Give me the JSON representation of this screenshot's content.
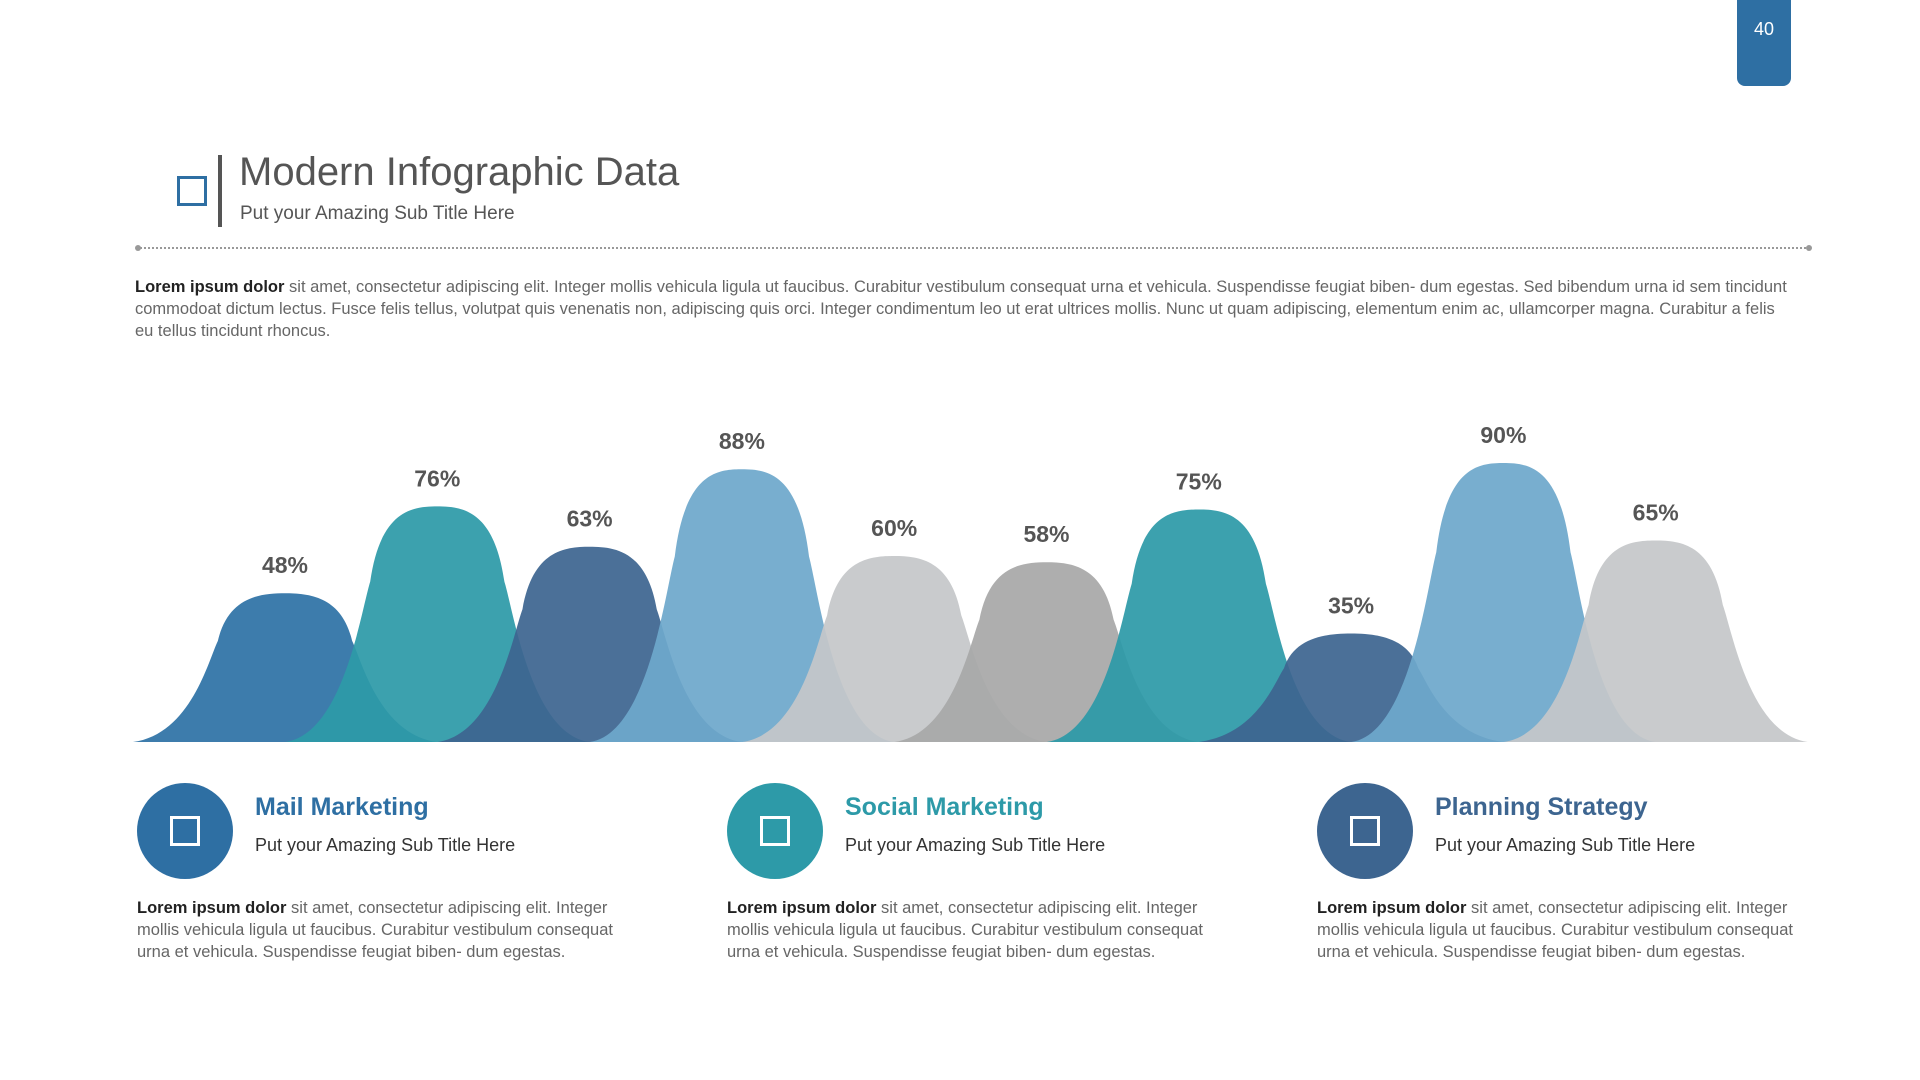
{
  "page_number": "40",
  "header": {
    "title": "Modern Infographic Data",
    "subtitle": "Put your Amazing Sub Title Here"
  },
  "intro": {
    "bold": "Lorem ipsum dolor",
    "text": " sit amet, consectetur adipiscing elit. Integer mollis vehicula ligula ut faucibus. Curabitur vestibulum consequat urna et vehicula. Suspendisse feugiat biben- dum egestas. Sed bibendum urna id sem tincidunt commodoat dictum lectus. Fusce felis tellus, volutpat quis venenatis non, adipiscing quis orci. Integer condimentum leo ut erat ultrices mollis. Nunc ut quam adipiscing, elementum enim ac, ullamcorper magna. Curabitur a felis eu tellus tincidunt rhoncus."
  },
  "chart_data": {
    "type": "area",
    "title": "",
    "xlabel": "",
    "ylabel": "",
    "ylim": [
      0,
      100
    ],
    "grid": false,
    "series": [
      {
        "name": "peak-1",
        "value": 48,
        "label": "48%",
        "color": "#2e72a6"
      },
      {
        "name": "peak-2",
        "value": 76,
        "label": "76%",
        "color": "#2d9aa8"
      },
      {
        "name": "peak-3",
        "value": 63,
        "label": "63%",
        "color": "#3d6590"
      },
      {
        "name": "peak-4",
        "value": 88,
        "label": "88%",
        "color": "#6ea8cb"
      },
      {
        "name": "peak-5",
        "value": 60,
        "label": "60%",
        "color": "#c5c7c9"
      },
      {
        "name": "peak-6",
        "value": 58,
        "label": "58%",
        "color": "#a8a8a8"
      },
      {
        "name": "peak-7",
        "value": 75,
        "label": "75%",
        "color": "#2d9aa8"
      },
      {
        "name": "peak-8",
        "value": 35,
        "label": "35%",
        "color": "#3d6590"
      },
      {
        "name": "peak-9",
        "value": 90,
        "label": "90%",
        "color": "#6ea8cb"
      },
      {
        "name": "peak-10",
        "value": 65,
        "label": "65%",
        "color": "#c5c7c9"
      }
    ]
  },
  "cards": [
    {
      "title": "Mail Marketing",
      "subtitle": "Put your Amazing Sub Title Here",
      "text_bold": "Lorem ipsum dolor",
      "text": " sit amet, consectetur adipiscing elit. Integer mollis vehicula ligula ut faucibus. Curabitur vestibulum consequat urna et vehicula. Suspendisse feugiat biben- dum egestas.",
      "color": "#2e6fa3"
    },
    {
      "title": "Social Marketing",
      "subtitle": "Put your Amazing Sub Title Here",
      "text_bold": "Lorem ipsum dolor",
      "text": " sit amet, consectetur adipiscing elit. Integer mollis vehicula ligula ut faucibus. Curabitur vestibulum consequat urna et vehicula. Suspendisse feugiat biben- dum egestas.",
      "color": "#2d9aa8"
    },
    {
      "title": "Planning Strategy",
      "subtitle": "Put your Amazing Sub Title Here",
      "text_bold": "Lorem ipsum dolor",
      "text": " sit amet, consectetur adipiscing elit. Integer mollis vehicula ligula ut faucibus. Curabitur vestibulum consequat urna et vehicula. Suspendisse feugiat biben- dum egestas.",
      "color": "#3d6590"
    }
  ]
}
